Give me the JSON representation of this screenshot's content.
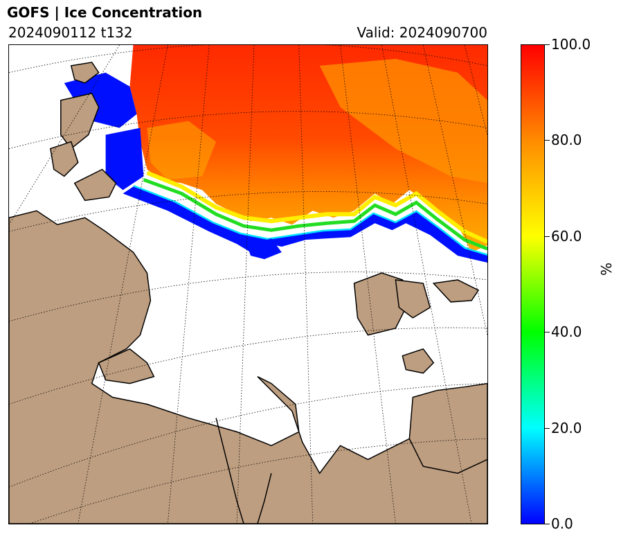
{
  "header": {
    "title": "GOFS  |  Ice Concentration",
    "run": "2024090112 t132",
    "valid": "Valid: 2024090700"
  },
  "colorbar": {
    "unit": "%",
    "ticks": [
      "0.0",
      "20.0",
      "40.0",
      "60.0",
      "80.0",
      "100.0"
    ],
    "colors": [
      "#0000ff",
      "#00ffff",
      "#00ff00",
      "#ffff00",
      "#ff8c00",
      "#ff0000"
    ],
    "range": [
      0,
      100
    ]
  },
  "map": {
    "land_color": "#be9e80",
    "ocean_color": "#ffffff",
    "gridlines": "dotted"
  }
}
